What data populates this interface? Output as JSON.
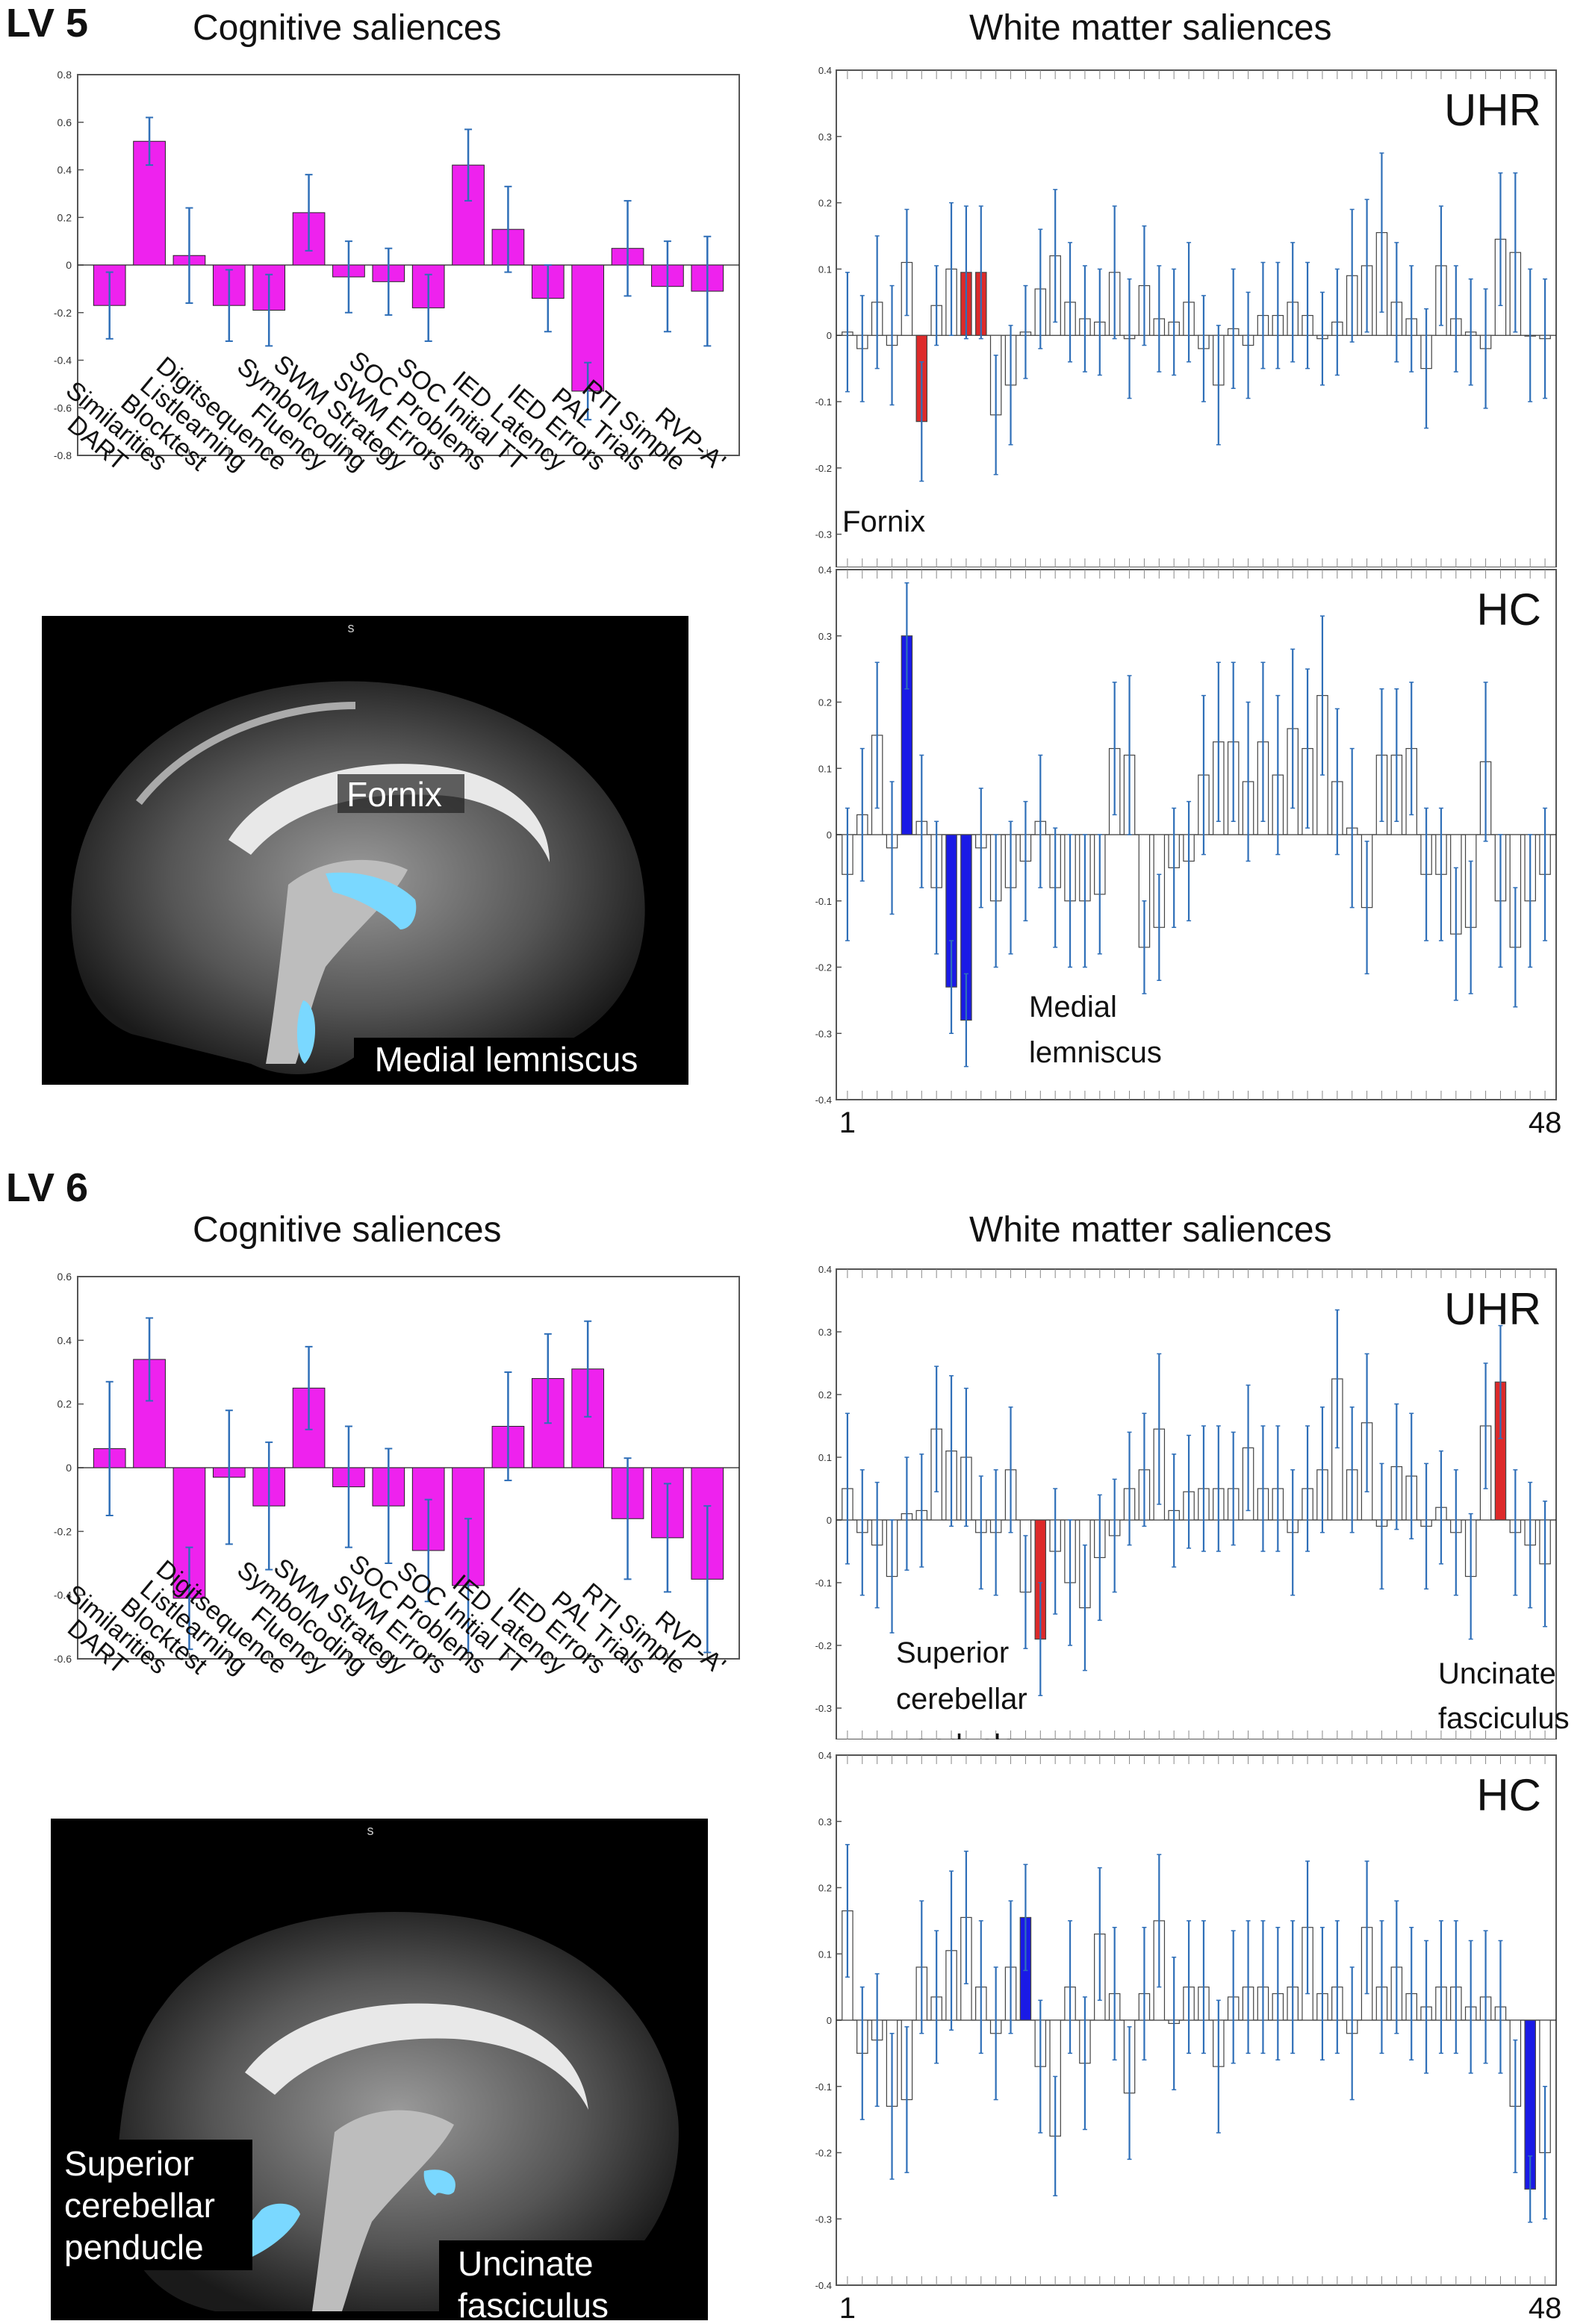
{
  "lv5": {
    "label": "LV 5",
    "cog_title": "Cognitive saliences",
    "wm_title": "White matter saliences",
    "brain_caption": "s",
    "brain_labels": [
      "Fornix",
      "Medial lemniscus"
    ]
  },
  "lv6": {
    "label": "LV 6",
    "cog_title": "Cognitive saliences",
    "wm_title": "White matter saliences",
    "brain_caption": "s",
    "brain_labels": [
      "Superior cerebellar penducle",
      "Uncinate fasciculus"
    ]
  },
  "colors": {
    "cog_bar": "#ee22ee",
    "error_bar": "#2f6fb8",
    "uhr_highlight": "#dd2a2a",
    "hc_highlight": "#1a1ae6",
    "tract_highlight": "#7ad8ff"
  },
  "chart_data": [
    {
      "id": "lv5_cog",
      "type": "bar",
      "categories": [
        "DART",
        "Similarities",
        "Blocktest",
        "Listlearning",
        "Digitsequence",
        "Fluency",
        "Symbolcoding",
        "SWM Strategy",
        "SWM Errors",
        "SOC Problems",
        "SOC Initial TT",
        "IED Latency",
        "IED Errors",
        "PAL Trials",
        "RTI Simple",
        "RVP-A'"
      ],
      "values": [
        -0.17,
        0.52,
        0.04,
        -0.17,
        -0.19,
        0.22,
        -0.05,
        -0.07,
        -0.18,
        0.42,
        0.15,
        -0.14,
        -0.53,
        0.07,
        -0.09,
        -0.11
      ],
      "errors": [
        0.14,
        0.1,
        0.2,
        0.15,
        0.15,
        0.16,
        0.15,
        0.14,
        0.14,
        0.15,
        0.18,
        0.14,
        0.12,
        0.2,
        0.19,
        0.23
      ],
      "ylim": [
        -0.8,
        0.8
      ],
      "yticks": [
        0.8,
        0.6,
        0.4,
        0.2,
        0,
        -0.2,
        -0.4,
        -0.6,
        -0.8
      ]
    },
    {
      "id": "lv5_wm_uhr",
      "type": "bar",
      "group_label": "UHR",
      "annotation": "Fornix",
      "x_start": "1",
      "x_end": "48",
      "values": [
        0.005,
        -0.02,
        0.05,
        -0.015,
        0.11,
        -0.13,
        0.045,
        0.1,
        0.095,
        0.095,
        -0.12,
        -0.075,
        0.005,
        0.07,
        0.12,
        0.05,
        0.025,
        0.02,
        0.095,
        -0.005,
        0.075,
        0.025,
        0.02,
        0.05,
        -0.02,
        -0.075,
        0.01,
        -0.015,
        0.03,
        0.03,
        0.05,
        0.03,
        -0.005,
        0.02,
        0.09,
        0.105,
        0.155,
        0.05,
        0.025,
        -0.05,
        0.105,
        0.025,
        0.005,
        -0.02,
        0.145,
        0.125,
        0.0,
        -0.005
      ],
      "errors": [
        0.09,
        0.08,
        0.1,
        0.09,
        0.08,
        0.09,
        0.06,
        0.1,
        0.1,
        0.1,
        0.09,
        0.09,
        0.07,
        0.09,
        0.1,
        0.09,
        0.08,
        0.08,
        0.1,
        0.09,
        0.09,
        0.08,
        0.08,
        0.09,
        0.08,
        0.09,
        0.09,
        0.08,
        0.08,
        0.08,
        0.09,
        0.08,
        0.07,
        0.08,
        0.1,
        0.1,
        0.12,
        0.09,
        0.08,
        0.09,
        0.09,
        0.08,
        0.08,
        0.09,
        0.1,
        0.12,
        0.1,
        0.09
      ],
      "highlight": [
        5,
        8,
        9
      ],
      "ylim": [
        -0.35,
        0.4
      ],
      "yticks": [
        0.4,
        0.3,
        0.2,
        0.1,
        0,
        -0.1,
        -0.2,
        -0.3
      ]
    },
    {
      "id": "lv5_wm_hc",
      "type": "bar",
      "group_label": "HC",
      "annotation": "Medial lemniscus",
      "x_start": "1",
      "x_end": "48",
      "values": [
        -0.06,
        0.03,
        0.15,
        -0.02,
        0.3,
        0.02,
        -0.08,
        -0.23,
        -0.28,
        -0.02,
        -0.1,
        -0.08,
        -0.04,
        0.02,
        -0.08,
        -0.1,
        -0.1,
        -0.09,
        0.13,
        0.12,
        -0.17,
        -0.14,
        -0.05,
        -0.04,
        0.09,
        0.14,
        0.14,
        0.08,
        0.14,
        0.09,
        0.16,
        0.13,
        0.21,
        0.08,
        0.01,
        -0.11,
        0.12,
        0.12,
        0.13,
        -0.06,
        -0.06,
        -0.15,
        -0.14,
        0.11,
        -0.1,
        -0.17,
        -0.1,
        -0.06
      ],
      "errors": [
        0.1,
        0.1,
        0.11,
        0.1,
        0.08,
        0.1,
        0.1,
        0.07,
        0.07,
        0.09,
        0.1,
        0.1,
        0.09,
        0.1,
        0.09,
        0.1,
        0.1,
        0.09,
        0.1,
        0.12,
        0.07,
        0.08,
        0.09,
        0.09,
        0.12,
        0.12,
        0.12,
        0.12,
        0.12,
        0.12,
        0.12,
        0.12,
        0.12,
        0.11,
        0.12,
        0.1,
        0.1,
        0.1,
        0.1,
        0.1,
        0.1,
        0.1,
        0.1,
        0.12,
        0.1,
        0.09,
        0.1,
        0.1
      ],
      "highlight": [
        4,
        7,
        8
      ],
      "ylim": [
        -0.4,
        0.4
      ],
      "yticks": [
        0.4,
        0.3,
        0.2,
        0.1,
        0,
        -0.1,
        -0.2,
        -0.3,
        -0.4
      ]
    },
    {
      "id": "lv6_cog",
      "type": "bar",
      "categories": [
        "DART",
        "Similarities",
        "Blocktest",
        "Listlearning",
        "Digitsequence",
        "Fluency",
        "Symbolcoding",
        "SWM Strategy",
        "SWM Errors",
        "SOC Problems",
        "SOC Initial TT",
        "IED Latency",
        "IED Errors",
        "PAL Trials",
        "RTI Simple",
        "RVP-A'"
      ],
      "values": [
        0.06,
        0.34,
        -0.41,
        -0.03,
        -0.12,
        0.25,
        -0.06,
        -0.12,
        -0.26,
        -0.37,
        0.13,
        0.28,
        0.31,
        -0.16,
        -0.22,
        -0.35
      ],
      "errors": [
        0.21,
        0.13,
        0.16,
        0.21,
        0.2,
        0.13,
        0.19,
        0.18,
        0.16,
        0.21,
        0.17,
        0.14,
        0.15,
        0.19,
        0.17,
        0.23
      ],
      "ylim": [
        -0.6,
        0.6
      ],
      "yticks": [
        0.6,
        0.4,
        0.2,
        0,
        -0.2,
        -0.4,
        -0.6
      ]
    },
    {
      "id": "lv6_wm_uhr",
      "type": "bar",
      "group_label": "UHR",
      "annotation_left": "Superior cerebellar penducle",
      "annotation_right": "Uncinate fasciculus",
      "x_start": "1",
      "x_end": "48",
      "values": [
        0.05,
        -0.02,
        -0.04,
        -0.09,
        0.01,
        0.015,
        0.145,
        0.11,
        0.1,
        -0.02,
        -0.02,
        0.08,
        -0.115,
        -0.19,
        -0.05,
        -0.1,
        -0.14,
        -0.06,
        -0.025,
        0.05,
        0.08,
        0.145,
        0.015,
        0.045,
        0.05,
        0.05,
        0.05,
        0.115,
        0.05,
        0.05,
        -0.02,
        0.05,
        0.08,
        0.225,
        0.08,
        0.155,
        -0.01,
        0.085,
        0.07,
        -0.01,
        0.02,
        -0.02,
        -0.09,
        0.15,
        0.22,
        -0.02,
        -0.04,
        -0.07
      ],
      "errors": [
        0.12,
        0.1,
        0.1,
        0.09,
        0.09,
        0.09,
        0.1,
        0.12,
        0.11,
        0.09,
        0.1,
        0.1,
        0.09,
        0.09,
        0.1,
        0.1,
        0.1,
        0.1,
        0.09,
        0.09,
        0.09,
        0.12,
        0.09,
        0.09,
        0.1,
        0.1,
        0.09,
        0.1,
        0.1,
        0.1,
        0.1,
        0.1,
        0.1,
        0.11,
        0.1,
        0.11,
        0.1,
        0.1,
        0.1,
        0.1,
        0.09,
        0.1,
        0.1,
        0.1,
        0.09,
        0.1,
        0.1,
        0.1
      ],
      "highlight": [
        13,
        44
      ],
      "ylim": [
        -0.35,
        0.4
      ],
      "yticks": [
        0.4,
        0.3,
        0.2,
        0.1,
        0,
        -0.1,
        -0.2,
        -0.3
      ]
    },
    {
      "id": "lv6_wm_hc",
      "type": "bar",
      "group_label": "HC",
      "x_start": "1",
      "x_end": "48",
      "values": [
        0.165,
        -0.05,
        -0.03,
        -0.13,
        -0.12,
        0.08,
        0.035,
        0.105,
        0.155,
        0.05,
        -0.02,
        0.08,
        0.155,
        -0.07,
        -0.175,
        0.05,
        -0.065,
        0.13,
        0.04,
        -0.11,
        0.04,
        0.15,
        -0.005,
        0.05,
        0.05,
        -0.07,
        0.035,
        0.05,
        0.05,
        0.04,
        0.05,
        0.14,
        0.04,
        0.05,
        -0.02,
        0.14,
        0.05,
        0.08,
        0.04,
        0.02,
        0.05,
        0.05,
        0.02,
        0.035,
        0.02,
        -0.13,
        -0.255,
        -0.2
      ],
      "errors": [
        0.1,
        0.1,
        0.1,
        0.11,
        0.11,
        0.1,
        0.1,
        0.12,
        0.1,
        0.1,
        0.1,
        0.1,
        0.08,
        0.1,
        0.09,
        0.1,
        0.1,
        0.1,
        0.1,
        0.1,
        0.1,
        0.1,
        0.1,
        0.1,
        0.1,
        0.1,
        0.1,
        0.1,
        0.1,
        0.1,
        0.1,
        0.1,
        0.1,
        0.1,
        0.1,
        0.1,
        0.1,
        0.1,
        0.1,
        0.1,
        0.1,
        0.1,
        0.1,
        0.1,
        0.1,
        0.1,
        0.05,
        0.1
      ],
      "highlight": [
        12,
        46
      ],
      "ylim": [
        -0.4,
        0.4
      ],
      "yticks": [
        0.4,
        0.3,
        0.2,
        0.1,
        0,
        -0.1,
        -0.2,
        -0.3,
        -0.4
      ]
    }
  ]
}
